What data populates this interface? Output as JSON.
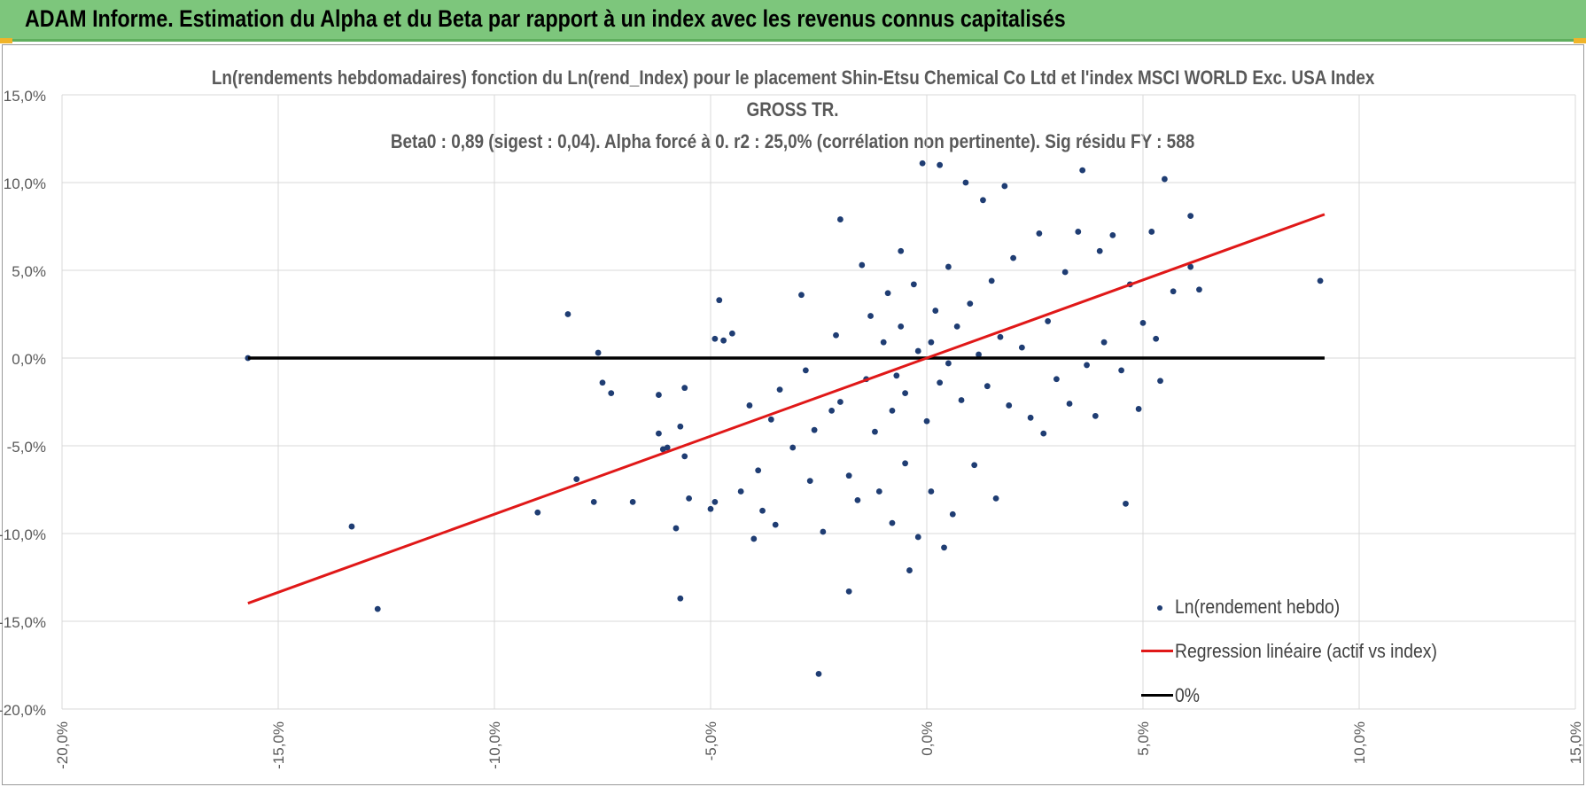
{
  "header": {
    "title": "ADAM Informe. Estimation du Alpha et du Beta par rapport à un index avec les revenus connus capitalisés"
  },
  "chart_data": {
    "type": "scatter",
    "title_lines": [
      "Ln(rendements hebdomadaires) fonction du Ln(rend_Index) pour le placement Shin-Etsu Chemical Co Ltd et l'index MSCI WORLD Exc. USA Index",
      "GROSS TR.",
      "Beta0 : 0,89  (sigest : 0,04). Alpha forcé à 0. r2 : 25,0% (corrélation non pertinente). Sig résidu FY : 588"
    ],
    "xlim": [
      -20,
      15
    ],
    "ylim": [
      -20,
      15
    ],
    "x_ticks": [
      "-20,0%",
      "-15,0%",
      "-10,0%",
      "-5,0%",
      "0,0%",
      "5,0%",
      "10,0%",
      "15,0%"
    ],
    "y_ticks": [
      "15,0%",
      "10,0%",
      "5,0%",
      "0,0%",
      "-5,0%",
      "-10,0%",
      "-15,0%",
      "-20,0%"
    ],
    "grid": true,
    "legend_position": "bottom-right",
    "beta": 0.89,
    "series": [
      {
        "name": "Ln(rendement hebdo)",
        "kind": "scatter",
        "color": "#1f3d73",
        "points": [
          [
            -15.7,
            0.0
          ],
          [
            -13.3,
            -9.6
          ],
          [
            -12.7,
            -14.3
          ],
          [
            -9.0,
            -8.8
          ],
          [
            -8.3,
            2.5
          ],
          [
            -8.1,
            -6.9
          ],
          [
            -7.7,
            -8.2
          ],
          [
            -7.6,
            0.3
          ],
          [
            -7.5,
            -1.4
          ],
          [
            -7.3,
            -2.0
          ],
          [
            -6.8,
            -8.2
          ],
          [
            -6.2,
            -4.3
          ],
          [
            -6.2,
            -2.1
          ],
          [
            -6.1,
            -5.2
          ],
          [
            -6.0,
            -5.1
          ],
          [
            -5.8,
            -9.7
          ],
          [
            -5.7,
            -3.9
          ],
          [
            -5.7,
            -13.7
          ],
          [
            -5.6,
            -5.6
          ],
          [
            -5.6,
            -1.7
          ],
          [
            -5.5,
            -8.0
          ],
          [
            -5.0,
            -8.6
          ],
          [
            -4.9,
            -8.2
          ],
          [
            -4.9,
            1.1
          ],
          [
            -4.8,
            3.3
          ],
          [
            -4.7,
            1.0
          ],
          [
            -4.5,
            1.4
          ],
          [
            -4.3,
            -7.6
          ],
          [
            -4.1,
            -2.7
          ],
          [
            -4.0,
            -10.3
          ],
          [
            -3.9,
            -6.4
          ],
          [
            -3.8,
            -8.7
          ],
          [
            -3.6,
            -3.5
          ],
          [
            -3.5,
            -9.5
          ],
          [
            -3.4,
            -1.8
          ],
          [
            -3.1,
            -5.1
          ],
          [
            -2.9,
            3.6
          ],
          [
            -2.8,
            -0.7
          ],
          [
            -2.7,
            -7.0
          ],
          [
            -2.6,
            -4.1
          ],
          [
            -2.5,
            -18.0
          ],
          [
            -2.4,
            -9.9
          ],
          [
            -2.2,
            -3.0
          ],
          [
            -2.1,
            1.3
          ],
          [
            -2.0,
            7.9
          ],
          [
            -2.0,
            -2.5
          ],
          [
            -1.8,
            -13.3
          ],
          [
            -1.8,
            -6.7
          ],
          [
            -1.6,
            -8.1
          ],
          [
            -1.5,
            5.3
          ],
          [
            -1.4,
            -1.2
          ],
          [
            -1.3,
            2.4
          ],
          [
            -1.2,
            -4.2
          ],
          [
            -1.1,
            -7.6
          ],
          [
            -1.0,
            0.9
          ],
          [
            -0.9,
            3.7
          ],
          [
            -0.8,
            -9.4
          ],
          [
            -0.8,
            -3.0
          ],
          [
            -0.7,
            -1.0
          ],
          [
            -0.6,
            1.8
          ],
          [
            -0.6,
            6.1
          ],
          [
            -0.5,
            -6.0
          ],
          [
            -0.5,
            -2.0
          ],
          [
            -0.4,
            -12.1
          ],
          [
            -0.3,
            4.2
          ],
          [
            -0.2,
            -10.2
          ],
          [
            -0.2,
            0.4
          ],
          [
            -0.1,
            11.1
          ],
          [
            0.0,
            -3.6
          ],
          [
            0.1,
            -7.6
          ],
          [
            0.1,
            0.9
          ],
          [
            0.2,
            2.7
          ],
          [
            0.3,
            -1.4
          ],
          [
            0.3,
            11.0
          ],
          [
            0.4,
            -10.8
          ],
          [
            0.5,
            5.2
          ],
          [
            0.5,
            -0.3
          ],
          [
            0.6,
            -8.9
          ],
          [
            0.7,
            1.8
          ],
          [
            0.8,
            -2.4
          ],
          [
            0.9,
            10.0
          ],
          [
            1.0,
            3.1
          ],
          [
            1.1,
            -6.1
          ],
          [
            1.2,
            0.2
          ],
          [
            1.3,
            9.0
          ],
          [
            1.4,
            -1.6
          ],
          [
            1.5,
            4.4
          ],
          [
            1.6,
            -8.0
          ],
          [
            1.7,
            1.2
          ],
          [
            1.8,
            9.8
          ],
          [
            1.9,
            -2.7
          ],
          [
            2.0,
            5.7
          ],
          [
            2.2,
            0.6
          ],
          [
            2.4,
            -3.4
          ],
          [
            2.6,
            7.1
          ],
          [
            2.7,
            -4.3
          ],
          [
            2.8,
            2.1
          ],
          [
            3.0,
            -1.2
          ],
          [
            3.2,
            4.9
          ],
          [
            3.3,
            -2.6
          ],
          [
            3.5,
            7.2
          ],
          [
            3.6,
            10.7
          ],
          [
            3.7,
            -0.4
          ],
          [
            3.9,
            -3.3
          ],
          [
            4.0,
            6.1
          ],
          [
            4.1,
            0.9
          ],
          [
            4.3,
            7.0
          ],
          [
            4.5,
            -0.7
          ],
          [
            4.6,
            -8.3
          ],
          [
            4.7,
            4.2
          ],
          [
            4.9,
            -2.9
          ],
          [
            5.0,
            2.0
          ],
          [
            5.2,
            7.2
          ],
          [
            5.3,
            1.1
          ],
          [
            5.4,
            -1.3
          ],
          [
            5.5,
            10.2
          ],
          [
            5.7,
            3.8
          ],
          [
            6.1,
            8.1
          ],
          [
            6.1,
            5.2
          ],
          [
            6.3,
            3.9
          ],
          [
            9.1,
            4.4
          ]
        ]
      },
      {
        "name": "Regression linéaire (actif vs index)",
        "kind": "line",
        "color": "#e01818",
        "x_range": [
          -15.7,
          9.2
        ]
      },
      {
        "name": "0%",
        "kind": "line",
        "color": "#000000",
        "y": 0,
        "x_range": [
          -15.7,
          9.2
        ]
      }
    ]
  }
}
